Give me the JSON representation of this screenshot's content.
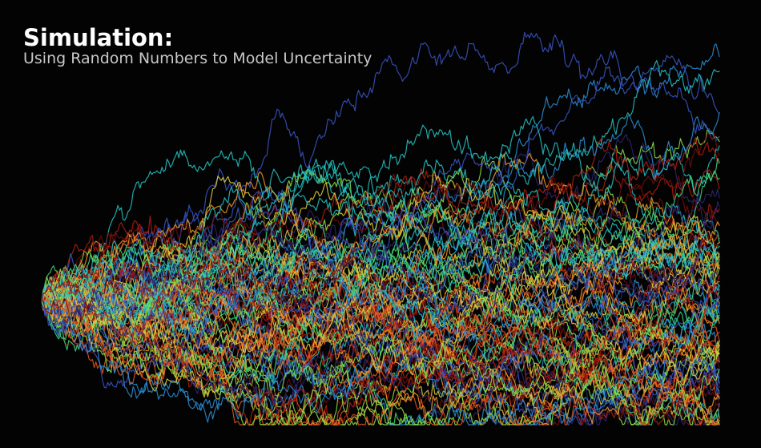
{
  "header": {
    "title": "Simulation:",
    "subtitle": "Using Random Numbers to Model Uncertainty"
  },
  "chart_data": {
    "type": "line",
    "title": "Simulation:",
    "subtitle": "Using Random Numbers to Model Uncertainty",
    "xlabel": "",
    "ylabel": "",
    "axes_visible": false,
    "grid": false,
    "legend": "none",
    "background": "#030303",
    "series_count": 100,
    "steps": 400,
    "start_value": 0,
    "volatility": 0.35,
    "ylim": [
      -8.5,
      18.5
    ],
    "palette": [
      "#2b2870",
      "#3a56c8",
      "#2a8fd8",
      "#24c6c6",
      "#3fd67a",
      "#8ee04a",
      "#e0d040",
      "#f29a2a",
      "#e8561e",
      "#b21e12",
      "#6e0e0a"
    ],
    "line_opacity": 0.85
  }
}
